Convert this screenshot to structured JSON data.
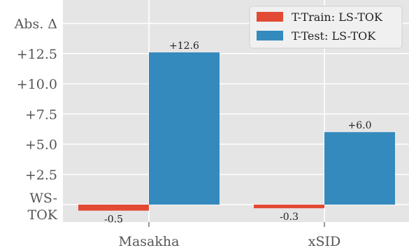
{
  "chart_data": {
    "type": "bar",
    "categories": [
      "Masakha",
      "xSID"
    ],
    "series": [
      {
        "name": "T-Train: LS-TOK",
        "color": "#E24A33",
        "values": [
          -0.5,
          -0.3
        ],
        "labels": [
          "-0.5",
          "-0.3"
        ]
      },
      {
        "name": "T-Test: LS-TOK",
        "color": "#348ABD",
        "values": [
          12.6,
          6.0
        ],
        "labels": [
          "+12.6",
          "+6.0"
        ]
      }
    ],
    "yticks": [
      {
        "value": 0,
        "label": "WS-\nTOK"
      },
      {
        "value": 2.5,
        "label": "+2.5"
      },
      {
        "value": 5.0,
        "label": "+5.0"
      },
      {
        "value": 7.5,
        "label": "+7.5"
      },
      {
        "value": 10.0,
        "label": "+10.0"
      },
      {
        "value": 12.5,
        "label": "+12.5"
      },
      {
        "value": 15.0,
        "label": "Abs. Δ"
      }
    ],
    "ylim": [
      -1.5,
      17.0
    ],
    "grid": true,
    "legend_position": "top-right",
    "background": "#E5E5E5",
    "grid_color": "#FFFFFF"
  }
}
